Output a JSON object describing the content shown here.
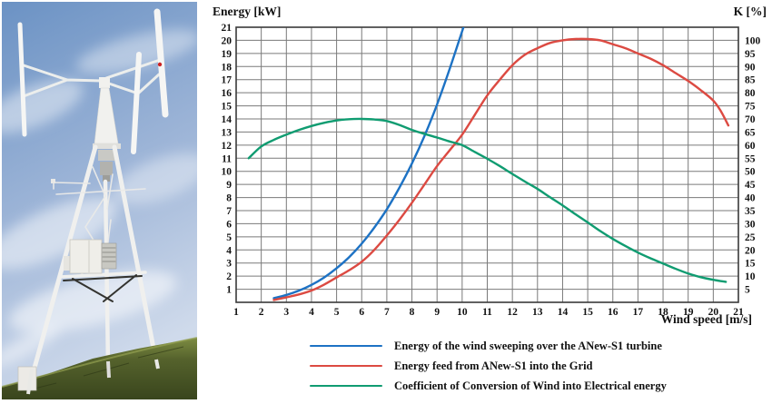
{
  "figure": {
    "photo_caption": "ANew-S1 vertical-axis wind turbine on a tripod mast, blue sky, grassy hill",
    "photo_colors": {
      "sky_top": "#6b92c4",
      "sky_mid": "#9fb6d8",
      "sky_horizon": "#cfdaeb",
      "cloud": "#ffffff",
      "hill_light": "#7d8c42",
      "hill_dark": "#39451d",
      "structure": "#f3f3f0",
      "cabinet": "#efeee9",
      "red_dot": "#cc2222"
    }
  },
  "chart_data": {
    "type": "line",
    "title_left": "Energy [kW]",
    "title_right": "K [%]",
    "xlabel": "Wind speed [m/s]",
    "xlim": [
      1,
      21
    ],
    "left_ylim": [
      0,
      21
    ],
    "right_ylim": [
      0,
      105
    ],
    "grid": true,
    "legend_position": "bottom",
    "x_ticks": [
      1,
      2,
      3,
      4,
      5,
      6,
      7,
      8,
      9,
      10,
      11,
      12,
      13,
      14,
      15,
      16,
      17,
      18,
      19,
      20,
      21
    ],
    "left_ticks": [
      1,
      2,
      3,
      4,
      5,
      6,
      7,
      8,
      9,
      10,
      11,
      12,
      13,
      14,
      15,
      16,
      17,
      18,
      19,
      20,
      21
    ],
    "right_ticks": [
      5,
      10,
      15,
      20,
      25,
      30,
      35,
      40,
      45,
      50,
      55,
      60,
      65,
      70,
      75,
      80,
      85,
      90,
      95,
      100
    ],
    "grid_color": "#7a7a7a",
    "border_color": "#3a3a3a",
    "series": [
      {
        "name": "Energy of the wind sweeping over the ANew-S1 turbine",
        "color": "#1d72c4",
        "axis": "left",
        "units": "kW",
        "points": [
          [
            2.5,
            0.32
          ],
          [
            3,
            0.56
          ],
          [
            3.5,
            0.89
          ],
          [
            4,
            1.33
          ],
          [
            4.5,
            1.89
          ],
          [
            5,
            2.6
          ],
          [
            5.5,
            3.45
          ],
          [
            6,
            4.48
          ],
          [
            6.5,
            5.7
          ],
          [
            7,
            7.1
          ],
          [
            7.5,
            8.75
          ],
          [
            8,
            10.6
          ],
          [
            8.5,
            12.7
          ],
          [
            9,
            15.1
          ],
          [
            9.5,
            17.8
          ],
          [
            10,
            20.7
          ],
          [
            10.12,
            21.4
          ]
        ]
      },
      {
        "name": "Energy feed from ANew-S1 into the Grid",
        "color": "#dc4a42",
        "axis": "left",
        "units": "kW",
        "points": [
          [
            2.5,
            0.18
          ],
          [
            3,
            0.38
          ],
          [
            3.5,
            0.6
          ],
          [
            4,
            0.9
          ],
          [
            4.5,
            1.35
          ],
          [
            5,
            1.9
          ],
          [
            5.5,
            2.45
          ],
          [
            6,
            3.1
          ],
          [
            6.5,
            4.0
          ],
          [
            7,
            5.1
          ],
          [
            7.5,
            6.3
          ],
          [
            8,
            7.6
          ],
          [
            8.5,
            9.0
          ],
          [
            9,
            10.4
          ],
          [
            9.5,
            11.6
          ],
          [
            10,
            12.8
          ],
          [
            10.5,
            14.3
          ],
          [
            11,
            15.8
          ],
          [
            11.5,
            17.0
          ],
          [
            12,
            18.1
          ],
          [
            12.5,
            18.9
          ],
          [
            13,
            19.4
          ],
          [
            13.5,
            19.8
          ],
          [
            14,
            20.0
          ],
          [
            14.5,
            20.1
          ],
          [
            15,
            20.1
          ],
          [
            15.5,
            20.0
          ],
          [
            16,
            19.7
          ],
          [
            16.5,
            19.4
          ],
          [
            17,
            19.0
          ],
          [
            17.5,
            18.6
          ],
          [
            18,
            18.1
          ],
          [
            18.5,
            17.5
          ],
          [
            19,
            16.9
          ],
          [
            19.5,
            16.2
          ],
          [
            20,
            15.4
          ],
          [
            20.3,
            14.6
          ],
          [
            20.6,
            13.5
          ]
        ]
      },
      {
        "name": "Coefficient of Conversion of Wind into Electrical energy",
        "color": "#109c71",
        "axis": "right",
        "units": "%",
        "points": [
          [
            1.5,
            55
          ],
          [
            2,
            59.5
          ],
          [
            2.5,
            62
          ],
          [
            3,
            64
          ],
          [
            3.5,
            65.8
          ],
          [
            4,
            67.3
          ],
          [
            4.5,
            68.5
          ],
          [
            5,
            69.4
          ],
          [
            5.5,
            69.9
          ],
          [
            6,
            70
          ],
          [
            6.5,
            69.8
          ],
          [
            7,
            69.2
          ],
          [
            7.5,
            67.7
          ],
          [
            8,
            65.8
          ],
          [
            8.5,
            64.3
          ],
          [
            9,
            62.9
          ],
          [
            9.5,
            61.4
          ],
          [
            10,
            60
          ],
          [
            10.5,
            57.4
          ],
          [
            11,
            54.8
          ],
          [
            11.5,
            52
          ],
          [
            12,
            49
          ],
          [
            12.5,
            46.1
          ],
          [
            13,
            43.3
          ],
          [
            13.5,
            40.1
          ],
          [
            14,
            37
          ],
          [
            14.5,
            33.7
          ],
          [
            15,
            30.5
          ],
          [
            15.5,
            27.2
          ],
          [
            16,
            24.2
          ],
          [
            16.5,
            21.5
          ],
          [
            17,
            19
          ],
          [
            17.5,
            16.8
          ],
          [
            18,
            14.8
          ],
          [
            18.5,
            12.8
          ],
          [
            19,
            11
          ],
          [
            19.5,
            9.6
          ],
          [
            20,
            8.6
          ],
          [
            20.5,
            7.8
          ]
        ]
      }
    ]
  }
}
